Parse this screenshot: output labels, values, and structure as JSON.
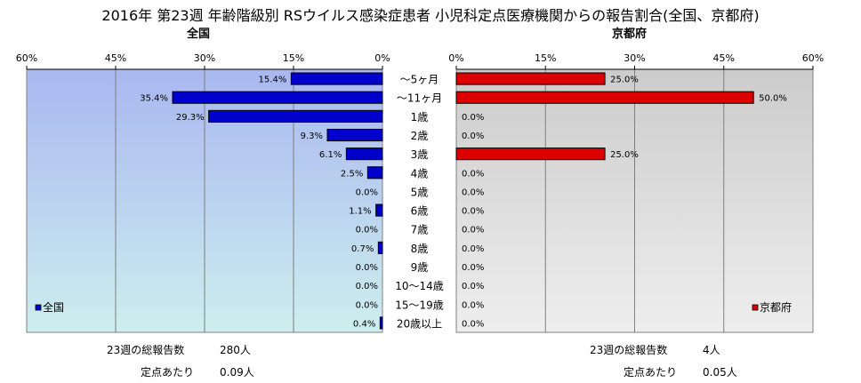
{
  "title": "2016年 第23週 年齢階級別 RSウイルス感染症患者 小児科定点医療機関からの報告割合(全国、京都府)",
  "colors": {
    "left_bar": "#0000cc",
    "right_bar": "#dd0000",
    "left_bg_top": "#a9b7f0",
    "left_bg_bottom": "#cdeeee",
    "right_bg_top": "#cccccc",
    "right_bg_bottom": "#eeeeee"
  },
  "chart_data": {
    "type": "bar",
    "orientation": "horizontal",
    "categories": [
      "～5ヶ月",
      "～11ヶ月",
      "1歳",
      "2歳",
      "3歳",
      "4歳",
      "5歳",
      "6歳",
      "7歳",
      "8歳",
      "9歳",
      "10～14歳",
      "15～19歳",
      "20歳以上"
    ],
    "panels": [
      {
        "subtitle": "全国",
        "legend": "全国",
        "legend_position": "bottom-left",
        "direction": "right-to-left",
        "xlim": [
          0,
          60
        ],
        "ticks": [
          "0%",
          "15%",
          "30%",
          "45%",
          "60%"
        ],
        "values": [
          15.4,
          35.4,
          29.3,
          9.3,
          6.1,
          2.5,
          0.0,
          1.1,
          0.0,
          0.7,
          0.0,
          0.0,
          0.0,
          0.4
        ],
        "labels": [
          "15.4%",
          "35.4%",
          "29.3%",
          "9.3%",
          "6.1%",
          "2.5%",
          "0.0%",
          "1.1%",
          "0.0%",
          "0.7%",
          "0.0%",
          "0.0%",
          "0.0%",
          "0.4%"
        ]
      },
      {
        "subtitle": "京都府",
        "legend": "京都府",
        "legend_position": "bottom-right",
        "direction": "left-to-right",
        "xlim": [
          0,
          60
        ],
        "ticks": [
          "0%",
          "15%",
          "30%",
          "45%",
          "60%"
        ],
        "values": [
          25.0,
          50.0,
          0.0,
          0.0,
          25.0,
          0.0,
          0.0,
          0.0,
          0.0,
          0.0,
          0.0,
          0.0,
          0.0,
          0.0
        ],
        "labels": [
          "25.0%",
          "50.0%",
          "0.0%",
          "0.0%",
          "25.0%",
          "0.0%",
          "0.0%",
          "0.0%",
          "0.0%",
          "0.0%",
          "0.0%",
          "0.0%",
          "0.0%",
          "0.0%"
        ]
      }
    ],
    "grid": true
  },
  "stats": {
    "left_total_label": "23週の総報告数",
    "left_total_value": "280人",
    "left_per_label": "定点あたり",
    "left_per_value": "0.09人",
    "right_total_label": "23週の総報告数",
    "right_total_value": "4人",
    "right_per_label": "定点あたり",
    "right_per_value": "0.05人"
  }
}
